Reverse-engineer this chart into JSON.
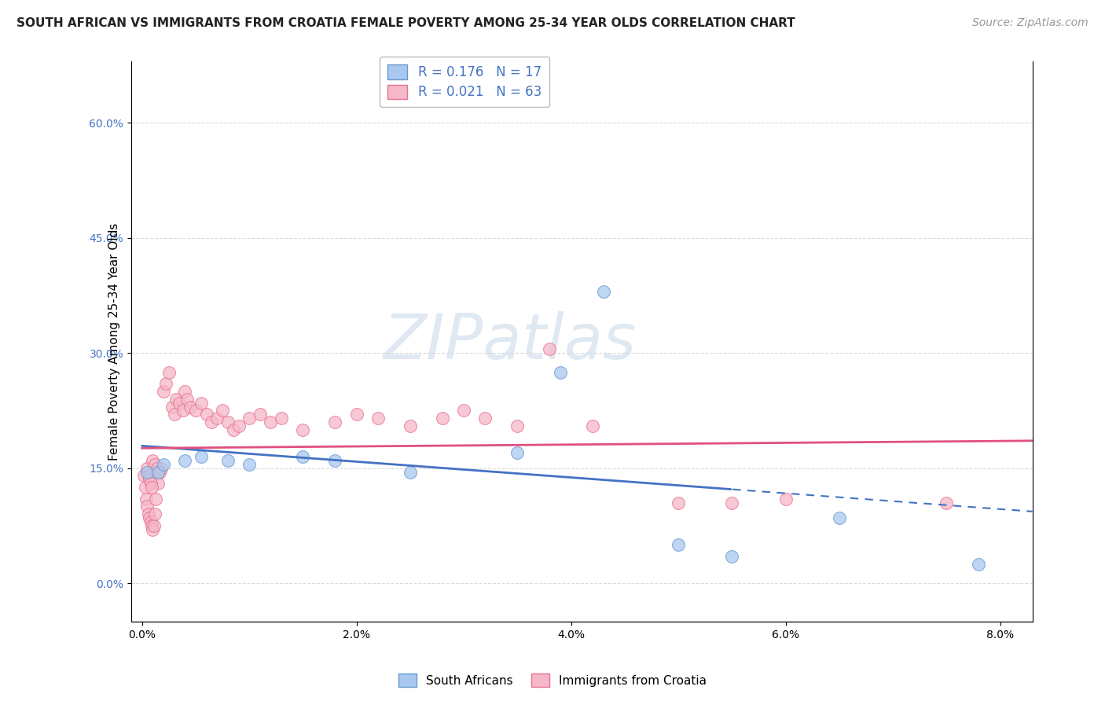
{
  "title": "SOUTH AFRICAN VS IMMIGRANTS FROM CROATIA FEMALE POVERTY AMONG 25-34 YEAR OLDS CORRELATION CHART",
  "source": "Source: ZipAtlas.com",
  "xlabel_ticks": [
    "0.0%",
    "2.0%",
    "4.0%",
    "6.0%",
    "8.0%"
  ],
  "xlabel_vals": [
    0.0,
    2.0,
    4.0,
    6.0,
    8.0
  ],
  "ylabel": "Female Poverty Among 25-34 Year Olds",
  "ylabel_ticks": [
    "0.0%",
    "15.0%",
    "30.0%",
    "45.0%",
    "60.0%"
  ],
  "ylabel_vals": [
    0.0,
    15.0,
    30.0,
    45.0,
    60.0
  ],
  "xlim": [
    -0.1,
    8.3
  ],
  "ylim": [
    -5.0,
    68.0
  ],
  "sa_color": "#a8c8f0",
  "sa_color_edge": "#6699CC",
  "cr_color": "#f5b8c8",
  "cr_color_edge": "#e87090",
  "sa_R": 0.176,
  "sa_N": 17,
  "cr_R": 0.021,
  "cr_N": 63,
  "sa_x": [
    0.05,
    0.15,
    0.2,
    0.4,
    0.55,
    0.8,
    1.0,
    1.5,
    1.8,
    2.5,
    3.5,
    3.9,
    4.3,
    5.0,
    5.5,
    6.5,
    7.8
  ],
  "sa_y": [
    14.5,
    14.5,
    15.5,
    16.0,
    16.5,
    16.0,
    15.5,
    16.5,
    16.0,
    14.5,
    17.0,
    27.5,
    38.0,
    5.0,
    3.5,
    8.5,
    2.5
  ],
  "cr_x": [
    0.02,
    0.03,
    0.04,
    0.05,
    0.06,
    0.07,
    0.08,
    0.09,
    0.1,
    0.11,
    0.12,
    0.13,
    0.15,
    0.15,
    0.18,
    0.2,
    0.22,
    0.25,
    0.28,
    0.3,
    0.32,
    0.35,
    0.38,
    0.4,
    0.42,
    0.45,
    0.5,
    0.55,
    0.6,
    0.65,
    0.7,
    0.75,
    0.8,
    0.85,
    0.9,
    1.0,
    1.1,
    1.2,
    1.3,
    1.5,
    1.8,
    2.0,
    2.2,
    2.5,
    2.8,
    3.0,
    3.2,
    3.5,
    3.8,
    4.2,
    5.0,
    5.5,
    6.0,
    7.5,
    0.05,
    0.06,
    0.07,
    0.08,
    0.09,
    0.1,
    0.12,
    0.14,
    0.16
  ],
  "cr_y": [
    14.0,
    12.5,
    11.0,
    10.0,
    9.0,
    8.5,
    8.0,
    7.5,
    7.0,
    7.5,
    9.0,
    11.0,
    14.5,
    13.0,
    15.0,
    25.0,
    26.0,
    27.5,
    23.0,
    22.0,
    24.0,
    23.5,
    22.5,
    25.0,
    24.0,
    23.0,
    22.5,
    23.5,
    22.0,
    21.0,
    21.5,
    22.5,
    21.0,
    20.0,
    20.5,
    21.5,
    22.0,
    21.0,
    21.5,
    20.0,
    21.0,
    22.0,
    21.5,
    20.5,
    21.5,
    22.5,
    21.5,
    20.5,
    30.5,
    20.5,
    10.5,
    10.5,
    11.0,
    10.5,
    15.0,
    14.0,
    13.5,
    13.0,
    12.5,
    16.0,
    15.5,
    15.0,
    14.5
  ],
  "sa_trend_solid_end": 5.5,
  "watermark_text": "ZIPatlas",
  "title_fontsize": 11,
  "axis_label_fontsize": 11,
  "tick_fontsize": 10,
  "legend_fontsize": 12,
  "source_fontsize": 10,
  "sa_trend_color": "#4472C4",
  "cr_trend_color": "#E05080",
  "grid_color": "#CCCCCC",
  "background_color": "#FFFFFF",
  "tick_color": "#4472C4"
}
